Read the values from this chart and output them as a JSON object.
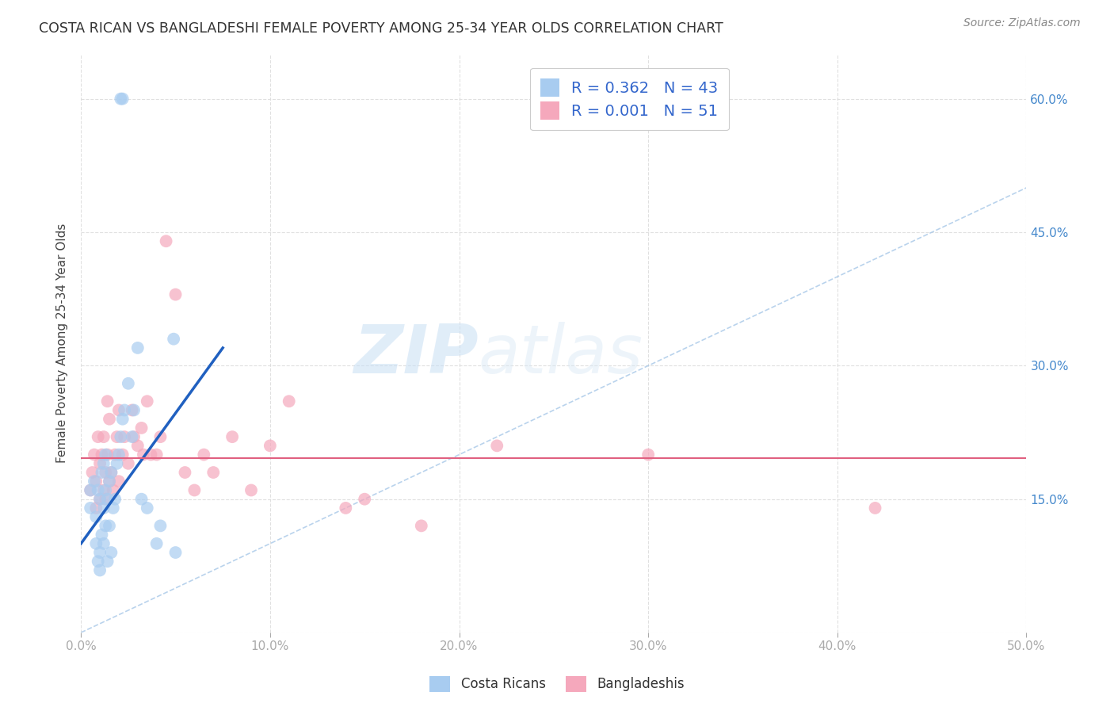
{
  "title": "COSTA RICAN VS BANGLADESHI FEMALE POVERTY AMONG 25-34 YEAR OLDS CORRELATION CHART",
  "source": "Source: ZipAtlas.com",
  "ylabel": "Female Poverty Among 25-34 Year Olds",
  "xlim": [
    0.0,
    0.5
  ],
  "ylim": [
    0.0,
    0.65
  ],
  "cr_R": "0.362",
  "cr_N": "43",
  "bd_R": "0.001",
  "bd_N": "51",
  "cr_color": "#a8ccf0",
  "bd_color": "#f5a8bc",
  "cr_line_color": "#2060c0",
  "bd_line_color": "#e06080",
  "diagonal_color": "#a8c8e8",
  "watermark_zip": "ZIP",
  "watermark_atlas": "atlas",
  "background_color": "#ffffff",
  "grid_color": "#dddddd",
  "cr_scatter_x": [
    0.005,
    0.005,
    0.007,
    0.008,
    0.008,
    0.009,
    0.009,
    0.01,
    0.01,
    0.01,
    0.011,
    0.011,
    0.012,
    0.012,
    0.012,
    0.013,
    0.013,
    0.013,
    0.014,
    0.014,
    0.015,
    0.015,
    0.016,
    0.016,
    0.017,
    0.018,
    0.019,
    0.02,
    0.021,
    0.022,
    0.023,
    0.025,
    0.027,
    0.028,
    0.03,
    0.032,
    0.035,
    0.04,
    0.042,
    0.05,
    0.021,
    0.022,
    0.049
  ],
  "cr_scatter_y": [
    0.14,
    0.16,
    0.17,
    0.1,
    0.13,
    0.08,
    0.16,
    0.07,
    0.09,
    0.15,
    0.11,
    0.18,
    0.1,
    0.14,
    0.19,
    0.12,
    0.16,
    0.2,
    0.08,
    0.15,
    0.12,
    0.17,
    0.09,
    0.18,
    0.14,
    0.15,
    0.19,
    0.2,
    0.22,
    0.24,
    0.25,
    0.28,
    0.22,
    0.25,
    0.32,
    0.15,
    0.14,
    0.1,
    0.12,
    0.09,
    0.6,
    0.6,
    0.33
  ],
  "bd_scatter_x": [
    0.005,
    0.006,
    0.007,
    0.008,
    0.008,
    0.009,
    0.01,
    0.01,
    0.011,
    0.012,
    0.012,
    0.013,
    0.013,
    0.014,
    0.014,
    0.015,
    0.015,
    0.016,
    0.017,
    0.018,
    0.019,
    0.02,
    0.02,
    0.022,
    0.023,
    0.025,
    0.027,
    0.028,
    0.03,
    0.032,
    0.033,
    0.035,
    0.037,
    0.04,
    0.042,
    0.045,
    0.05,
    0.055,
    0.06,
    0.065,
    0.07,
    0.08,
    0.09,
    0.1,
    0.11,
    0.14,
    0.15,
    0.18,
    0.22,
    0.3,
    0.42
  ],
  "bd_scatter_y": [
    0.16,
    0.18,
    0.2,
    0.14,
    0.17,
    0.22,
    0.15,
    0.19,
    0.2,
    0.16,
    0.22,
    0.15,
    0.18,
    0.2,
    0.26,
    0.17,
    0.24,
    0.18,
    0.16,
    0.2,
    0.22,
    0.17,
    0.25,
    0.2,
    0.22,
    0.19,
    0.25,
    0.22,
    0.21,
    0.23,
    0.2,
    0.26,
    0.2,
    0.2,
    0.22,
    0.44,
    0.38,
    0.18,
    0.16,
    0.2,
    0.18,
    0.22,
    0.16,
    0.21,
    0.26,
    0.14,
    0.15,
    0.12,
    0.21,
    0.2,
    0.14
  ],
  "cr_line_x0": 0.0,
  "cr_line_y0": 0.1,
  "cr_line_x1": 0.075,
  "cr_line_y1": 0.32,
  "bd_line_y": 0.196
}
